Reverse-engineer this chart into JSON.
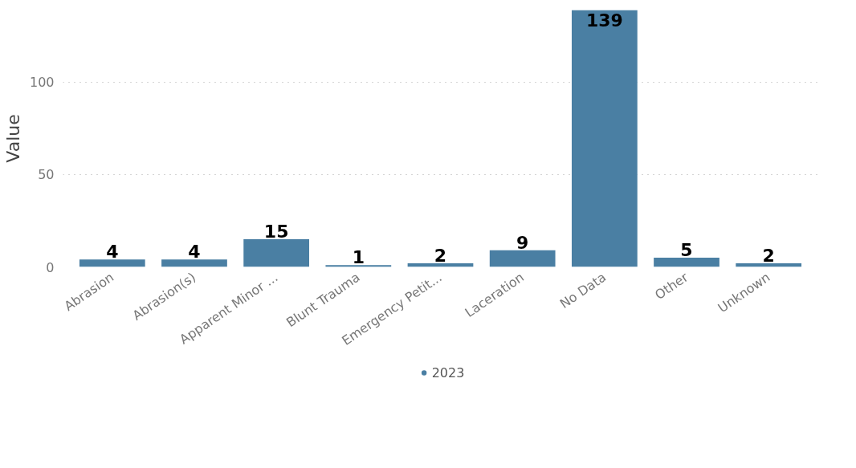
{
  "chart_data": {
    "type": "bar",
    "ylabel": "Value",
    "categories": [
      "Abrasion",
      "Abrasion(s)",
      "Apparent Minor ...",
      "Blunt Trauma",
      "Emergency Petit...",
      "Laceration",
      "No Data",
      "Other",
      "Unknown"
    ],
    "series": [
      {
        "name": "2023",
        "color": "#4a7fa3",
        "values": [
          4,
          4,
          15,
          1,
          2,
          9,
          139,
          5,
          2
        ]
      }
    ],
    "ylim": [
      0,
      139
    ],
    "yticks": [
      0,
      50,
      100
    ],
    "grid": "y",
    "legend": "bottom",
    "data_labels": true
  }
}
